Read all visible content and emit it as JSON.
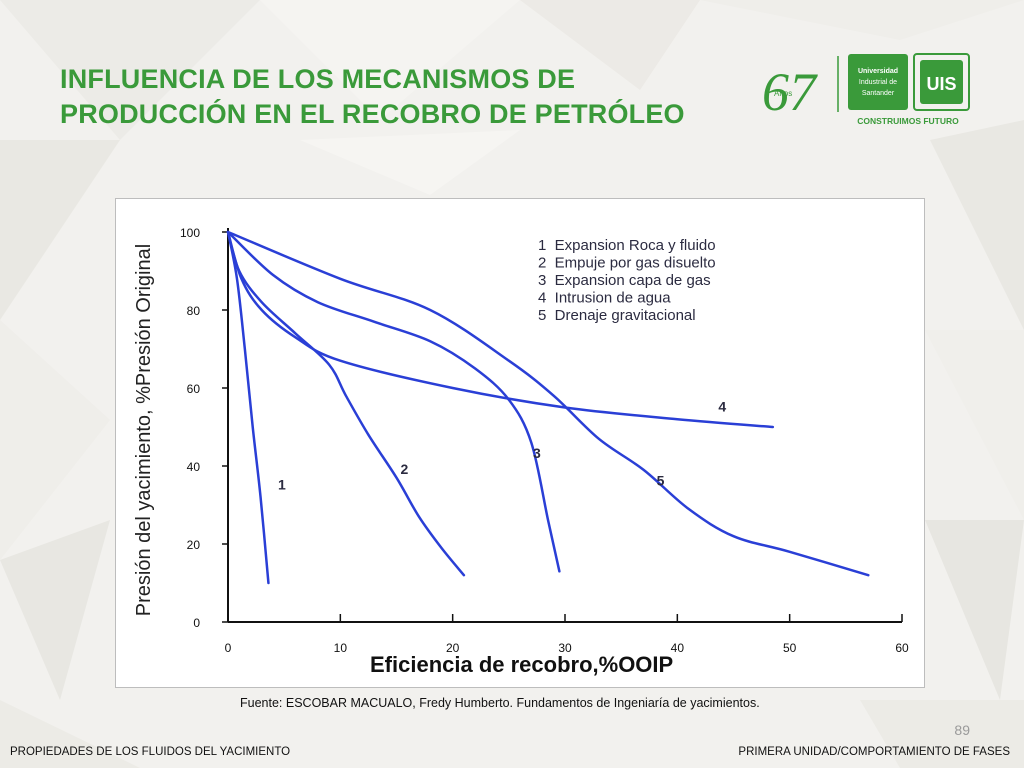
{
  "slide": {
    "title": "INFLUENCIA DE LOS MECANISMOS DE PRODUCCIÓN EN EL RECOBRO DE PETRÓLEO",
    "source": "Fuente: ESCOBAR MACUALO, Fredy Humberto. Fundamentos de Ingeniaría de yacimientos.",
    "page_number": "89",
    "footer_left": "PROPIEDADES DE LOS FLUIDOS DEL YACIMIENTO",
    "footer_right": "PRIMERA UNIDAD/COMPORTAMIENTO DE FASES"
  },
  "logo": {
    "anniversary": "67",
    "anniversary_word": "Años",
    "university_line1": "Universidad",
    "university_line2": "Industrial de",
    "university_line3": "Santander",
    "monogram": "UIS",
    "slogan": "CONSTRUIMOS FUTURO",
    "green": "#3a9a3a"
  },
  "chart_data": {
    "type": "line",
    "title": "",
    "xlabel": "Eficiencia de recobro,%OOIP",
    "ylabel": "Presión del yacimiento, %Presión Original",
    "xlim": [
      0,
      60
    ],
    "ylim": [
      0,
      100
    ],
    "x_ticks": [
      0,
      10,
      20,
      30,
      40,
      50,
      60
    ],
    "y_ticks": [
      0,
      20,
      40,
      60,
      80,
      100
    ],
    "grid": false,
    "legend_position": "top-right",
    "line_color": "#2a3fd6",
    "legend": [
      "1  Expansion Roca y fluido",
      "2  Empuje por gas disuelto",
      "3  Expansion capa de gas",
      "4  Intrusion de agua",
      "5  Drenaje gravitacional"
    ],
    "series": [
      {
        "name": "1",
        "label_at": [
          4.8,
          34
        ],
        "points": [
          [
            0,
            100
          ],
          [
            0.8,
            88
          ],
          [
            1.5,
            70
          ],
          [
            2.2,
            50
          ],
          [
            2.9,
            32
          ],
          [
            3.6,
            10
          ]
        ]
      },
      {
        "name": "2",
        "label_at": [
          15.7,
          38
        ],
        "points": [
          [
            0,
            100
          ],
          [
            1,
            90
          ],
          [
            3,
            82
          ],
          [
            6,
            74
          ],
          [
            9,
            66
          ],
          [
            10.5,
            58
          ],
          [
            12.5,
            48
          ],
          [
            15,
            37
          ],
          [
            17,
            27
          ],
          [
            19,
            19
          ],
          [
            21,
            12
          ]
        ]
      },
      {
        "name": "3",
        "label_at": [
          27.5,
          42
        ],
        "points": [
          [
            0,
            100
          ],
          [
            4,
            89
          ],
          [
            8,
            82
          ],
          [
            13,
            77
          ],
          [
            18,
            72
          ],
          [
            22,
            65
          ],
          [
            25,
            57
          ],
          [
            27,
            46
          ],
          [
            28.5,
            26
          ],
          [
            29.5,
            13
          ]
        ]
      },
      {
        "name": "4",
        "label_at": [
          44,
          54
        ],
        "points": [
          [
            0,
            100
          ],
          [
            1.2,
            88
          ],
          [
            3,
            80
          ],
          [
            6,
            73
          ],
          [
            10,
            67
          ],
          [
            20,
            60
          ],
          [
            30,
            55
          ],
          [
            40,
            52
          ],
          [
            48.5,
            50
          ]
        ]
      },
      {
        "name": "5",
        "label_at": [
          38.5,
          35
        ],
        "points": [
          [
            0,
            100
          ],
          [
            10,
            88
          ],
          [
            18,
            80
          ],
          [
            25,
            67
          ],
          [
            29,
            58
          ],
          [
            33,
            47
          ],
          [
            37,
            39
          ],
          [
            41,
            29
          ],
          [
            45,
            22
          ],
          [
            50,
            18
          ],
          [
            57,
            12
          ]
        ]
      }
    ]
  }
}
